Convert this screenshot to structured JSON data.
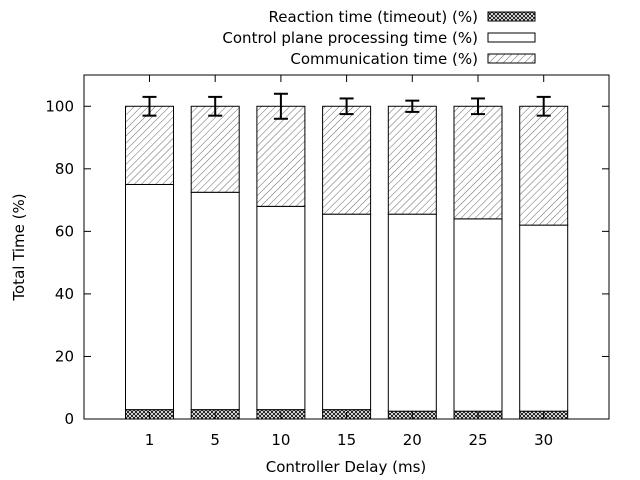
{
  "chart_data": {
    "type": "bar",
    "stacked": true,
    "categories": [
      "1",
      "5",
      "10",
      "15",
      "20",
      "25",
      "30"
    ],
    "series": [
      {
        "name": "Reaction time (timeout) (%)",
        "values": [
          3,
          3,
          3,
          3,
          2.5,
          2.5,
          2.5
        ],
        "fill": "crosshatch"
      },
      {
        "name": "Control plane processing time (%)",
        "values": [
          72,
          69.5,
          65,
          62.5,
          63,
          61.5,
          59.5
        ],
        "fill": "solid-white"
      },
      {
        "name": "Communication time (%)",
        "values": [
          25,
          27.5,
          32,
          34.5,
          34.5,
          36,
          38
        ],
        "fill": "diagonal-hatch"
      }
    ],
    "error_bars": [
      3,
      3,
      4,
      2.5,
      1.8,
      2.5,
      3
    ],
    "xlabel": "Controller Delay (ms)",
    "ylabel": "Total Time (%)",
    "ylim": [
      0,
      110
    ],
    "yticks": [
      0,
      20,
      40,
      60,
      80,
      100
    ],
    "legend_position": "top-right, outside plot",
    "grid": false
  }
}
